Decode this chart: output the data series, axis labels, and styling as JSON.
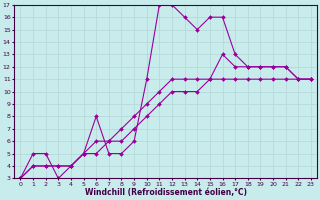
{
  "xlabel": "Windchill (Refroidissement éolien,°C)",
  "bg_color": "#c8ecec",
  "line_color": "#990099",
  "grid_color": "#b8d8d8",
  "xlim": [
    -0.5,
    23.5
  ],
  "ylim": [
    3,
    17
  ],
  "xticks": [
    0,
    1,
    2,
    3,
    4,
    5,
    6,
    7,
    8,
    9,
    10,
    11,
    12,
    13,
    14,
    15,
    16,
    17,
    18,
    19,
    20,
    21,
    22,
    23
  ],
  "yticks": [
    3,
    4,
    5,
    6,
    7,
    8,
    9,
    10,
    11,
    12,
    13,
    14,
    15,
    16,
    17
  ],
  "line1_x": [
    0,
    1,
    2,
    3,
    4,
    5,
    6,
    7,
    8,
    9,
    10,
    11,
    12,
    13,
    14,
    15,
    16,
    17,
    18,
    19,
    20,
    21,
    22,
    23
  ],
  "line1_y": [
    3,
    5,
    5,
    3,
    4,
    5,
    8,
    5,
    5,
    6,
    11,
    17,
    17,
    16,
    15,
    16,
    16,
    13,
    12,
    12,
    12,
    12,
    11,
    11
  ],
  "line2_x": [
    0,
    1,
    2,
    3,
    4,
    5,
    6,
    7,
    8,
    9,
    10,
    11,
    12,
    13,
    14,
    15,
    16,
    17,
    18,
    19,
    20,
    21,
    22,
    23
  ],
  "line2_y": [
    3,
    4,
    4,
    4,
    4,
    5,
    6,
    6,
    7,
    8,
    9,
    10,
    11,
    11,
    11,
    11,
    13,
    12,
    12,
    12,
    12,
    12,
    11,
    11
  ],
  "line3_x": [
    0,
    1,
    2,
    3,
    4,
    5,
    6,
    7,
    8,
    9,
    10,
    11,
    12,
    13,
    14,
    15,
    16,
    17,
    18,
    19,
    20,
    21,
    22,
    23
  ],
  "line3_y": [
    3,
    4,
    4,
    4,
    4,
    5,
    5,
    6,
    6,
    7,
    8,
    9,
    10,
    10,
    10,
    11,
    11,
    11,
    11,
    11,
    11,
    11,
    11,
    11
  ],
  "xlabel_fontsize": 5.5,
  "tick_fontsize": 4.5
}
